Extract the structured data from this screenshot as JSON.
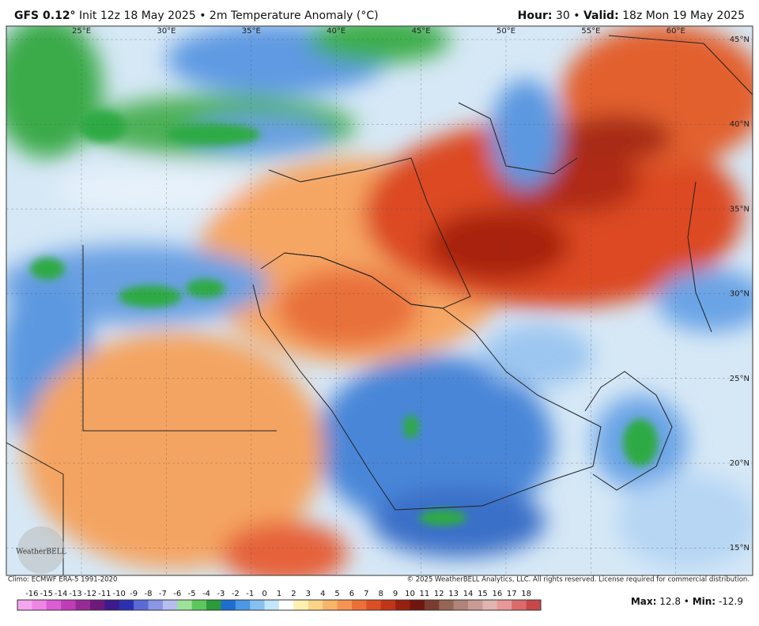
{
  "header": {
    "model": "GFS 0.12°",
    "init": "Init 12z 18 May 2025",
    "separator": "•",
    "field": "2m Temperature Anomaly (°C)",
    "hour_label": "Hour:",
    "hour": "30",
    "valid_label": "Valid:",
    "valid": "18z Mon 19 May 2025"
  },
  "map": {
    "longitude_labels": [
      "25°E",
      "30°E",
      "35°E",
      "40°E",
      "45°E",
      "50°E",
      "55°E",
      "60°E"
    ],
    "latitude_labels": [
      "45°N",
      "40°N",
      "35°N",
      "30°N",
      "25°N",
      "20°N",
      "15°N"
    ],
    "logo": "WeatherBELL"
  },
  "footer": {
    "climo": "Climo: ECMWF ERA-5 1991-2020",
    "copyright": "© 2025 WeatherBELL Analytics, LLC. All rights reserved. License required for commercial distribution."
  },
  "colorbar": {
    "ticks": [
      -16,
      -15,
      -14,
      -13,
      -12,
      -11,
      -10,
      -9,
      -8,
      -7,
      -6,
      -5,
      -4,
      -3,
      -2,
      -1,
      0,
      1,
      2,
      3,
      4,
      5,
      6,
      7,
      8,
      9,
      10,
      11,
      12,
      13,
      14,
      15,
      16,
      17,
      18
    ],
    "colors": [
      "#f6a6ee",
      "#ee86e6",
      "#dc5cd4",
      "#c03cb8",
      "#982a98",
      "#6c1a7c",
      "#3c1a8c",
      "#2c30b0",
      "#5a6ad6",
      "#8a96e6",
      "#b6bef0",
      "#9ee29a",
      "#5cc85c",
      "#2a9a3a",
      "#1e6ed0",
      "#4a98e6",
      "#86c0f0",
      "#c4e6fa",
      "#ffffff",
      "#fff0b0",
      "#fcd488",
      "#f8b468",
      "#f49450",
      "#ec7036",
      "#dc4e24",
      "#c03418",
      "#982010",
      "#70160c",
      "#7a3c2e",
      "#966656",
      "#b08478",
      "#c89c94",
      "#e0b4b0",
      "#e89898",
      "#dc6a6a",
      "#c84848"
    ]
  },
  "stats": {
    "max_label": "Max:",
    "max": 12.8,
    "separator": "•",
    "min_label": "Min:",
    "min": -12.9
  }
}
